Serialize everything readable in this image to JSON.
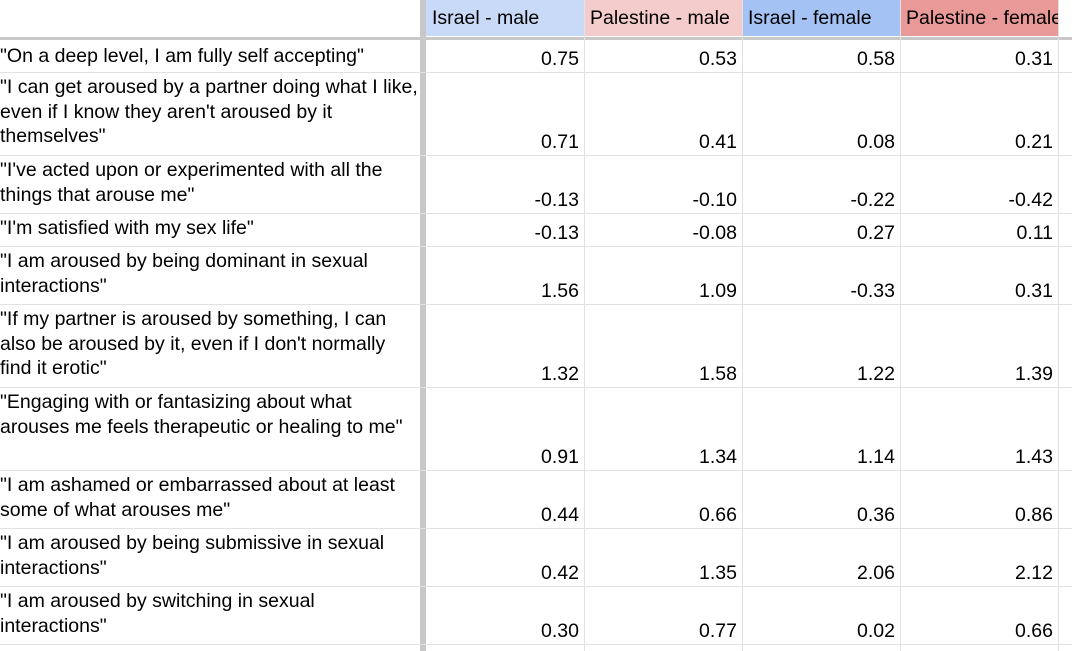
{
  "headers": [
    "Israel - male",
    "Palestine - male",
    "Israel - female",
    "Palestine - female"
  ],
  "header_colors": [
    "#c9daf8",
    "#f4cccc",
    "#a4c2f4",
    "#ea9999"
  ],
  "rows": [
    {
      "question": "\"On a deep level, I am fully self accepting\"",
      "values": [
        "0.75",
        "0.53",
        "0.58",
        "0.31"
      ]
    },
    {
      "question": "\"I can get aroused by a partner doing what I like, even if I know they aren't aroused by it themselves\"",
      "values": [
        "0.71",
        "0.41",
        "0.08",
        "0.21"
      ]
    },
    {
      "question": "\"I've acted upon or experimented with all the things that arouse me\"",
      "values": [
        "-0.13",
        "-0.10",
        "-0.22",
        "-0.42"
      ]
    },
    {
      "question": "\"I'm satisfied with my sex life\"",
      "values": [
        "-0.13",
        "-0.08",
        "0.27",
        "0.11"
      ]
    },
    {
      "question": "\"I am aroused by being dominant in sexual interactions\"",
      "values": [
        "1.56",
        "1.09",
        "-0.33",
        "0.31"
      ]
    },
    {
      "question": "\"If my partner is aroused by something, I can also be aroused by it, even if I don't normally find it erotic\"",
      "values": [
        "1.32",
        "1.58",
        "1.22",
        "1.39"
      ]
    },
    {
      "question": "\"Engaging with or fantasizing about what arouses me feels therapeutic or healing to me\"",
      "values": [
        "0.91",
        "1.34",
        "1.14",
        "1.43"
      ]
    },
    {
      "question": "\"I am ashamed or embarrassed about at least some of what arouses me\"",
      "values": [
        "0.44",
        "0.66",
        "0.36",
        "0.86"
      ]
    },
    {
      "question": "\"I am aroused by being submissive in sexual interactions\"",
      "values": [
        "0.42",
        "1.35",
        "2.06",
        "2.12"
      ]
    },
    {
      "question": "\"I am aroused by switching in sexual interactions\"",
      "values": [
        "0.30",
        "0.77",
        "0.02",
        "0.66"
      ]
    }
  ]
}
